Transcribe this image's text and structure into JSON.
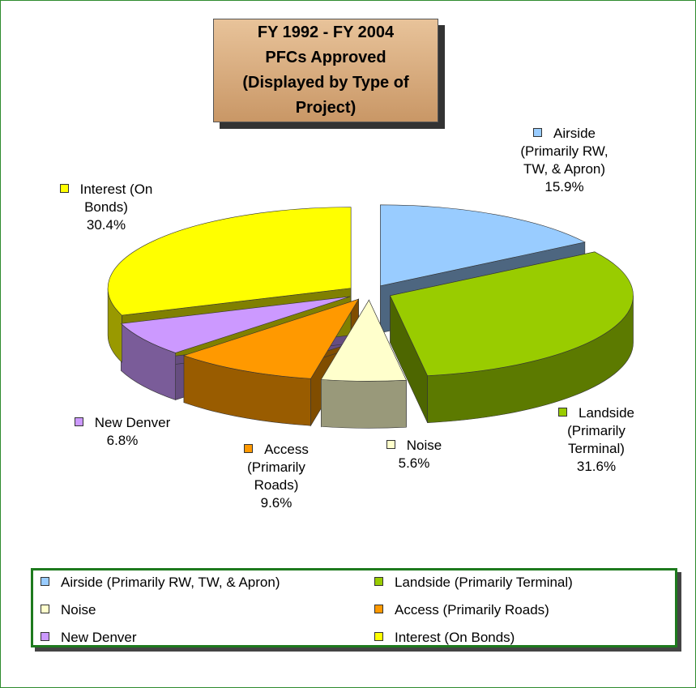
{
  "chart_data": {
    "type": "pie3d",
    "title": [
      "FY 1992 - FY 2004",
      "PFCs Approved",
      "(Displayed by Type of Project)"
    ],
    "categories": [
      "Airside (Primarily RW, TW, & Apron)",
      "Landside (Primarily Terminal)",
      "Noise",
      "Access (Primarily Roads)",
      "New Denver",
      "Interest (On Bonds)"
    ],
    "values": [
      15.9,
      31.6,
      5.6,
      9.6,
      6.8,
      30.4
    ],
    "value_labels": [
      "15.9%",
      "31.6%",
      "5.6%",
      "9.6%",
      "6.8%",
      "30.4%"
    ],
    "colors": [
      "#99ccff",
      "#99cc00",
      "#ffffcc",
      "#ff9900",
      "#cc99ff",
      "#ffff00"
    ],
    "legend": "bottom"
  }
}
